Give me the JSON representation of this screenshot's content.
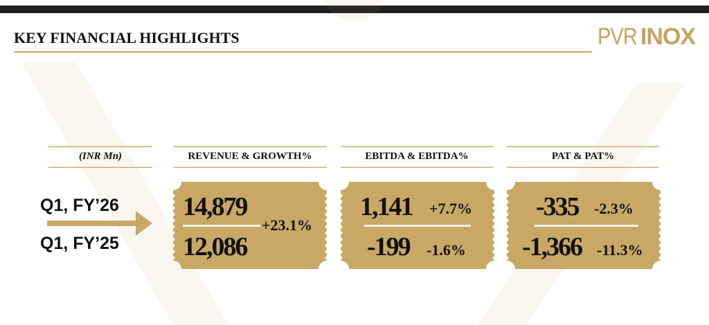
{
  "header": {
    "title": "KEY FINANCIAL HIGHLIGHTS",
    "logo_left": "PVR",
    "logo_right": "INOX"
  },
  "unit_label": "(INR Mn)",
  "periods": [
    "Q1, FY’26",
    "Q1, FY’25"
  ],
  "colors": {
    "gold": "#c9a866",
    "dark": "#1e1e1e"
  },
  "metrics": [
    {
      "header": "REVENUE & GROWTH%",
      "current": "14,879",
      "previous": "12,086",
      "growth": "+23.1%"
    },
    {
      "header": "EBITDA & EBITDA%",
      "current": "1,141",
      "current_pct": "+7.7%",
      "previous": "-199",
      "previous_pct": "-1.6%"
    },
    {
      "header": "PAT & PAT%",
      "current": "-335",
      "current_pct": "-2.3%",
      "previous": "-1,366",
      "previous_pct": "-11.3%"
    }
  ]
}
